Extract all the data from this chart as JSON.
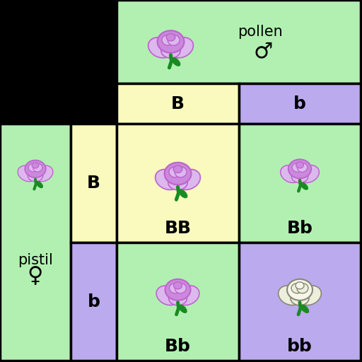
{
  "bg_color": "#000000",
  "green_color": "#B2F0B2",
  "yellow_color": "#FAFABE",
  "purple_color": "#BBAAEE",
  "title_pollen": "pollen",
  "title_pistil": "pistil",
  "male_symbol": "♂",
  "female_symbol": "♀",
  "allele_B": "B",
  "allele_b": "b",
  "genotype_BB": "BB",
  "genotype_Bb": "Bb",
  "genotype_bb": "bb",
  "flower_purple_dark": "#BB66CC",
  "flower_purple_mid": "#CC88DD",
  "flower_purple_light": "#DDB8EE",
  "flower_white_outer": "#EEEEDD",
  "flower_white_inner": "#F5F5E8",
  "stem_color": "#1A8B22",
  "border_color": "#000000",
  "col0": 0,
  "col1": 100,
  "col2": 165,
  "col3": 338,
  "col4": 510,
  "row0": 0,
  "row1": 118,
  "row2": 175,
  "row3": 343,
  "row4": 510,
  "lw": 2.5
}
